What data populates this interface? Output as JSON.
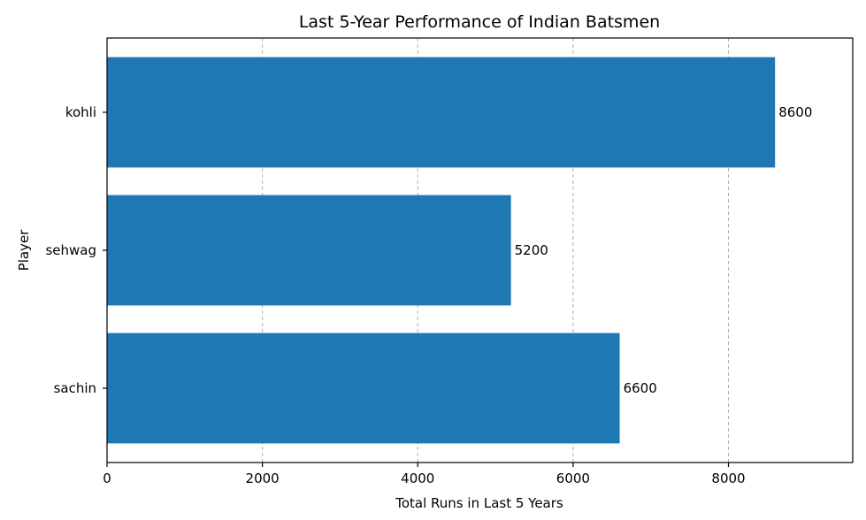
{
  "chart_data": {
    "type": "bar",
    "orientation": "horizontal",
    "title": "Last 5-Year Performance of Indian Batsmen",
    "xlabel": "Total Runs in Last 5 Years",
    "ylabel": "Player",
    "categories": [
      "sachin",
      "sehwag",
      "kohli"
    ],
    "values": [
      6600,
      5200,
      8600
    ],
    "data_labels": [
      "6600",
      "5200",
      "8600"
    ],
    "xlim": [
      0,
      9600
    ],
    "xticks": [
      0,
      2000,
      4000,
      6000,
      8000
    ],
    "xtick_labels": [
      "0",
      "2000",
      "4000",
      "6000",
      "8000"
    ],
    "grid": "x-dashed",
    "bar_color": "#1f77b4"
  }
}
